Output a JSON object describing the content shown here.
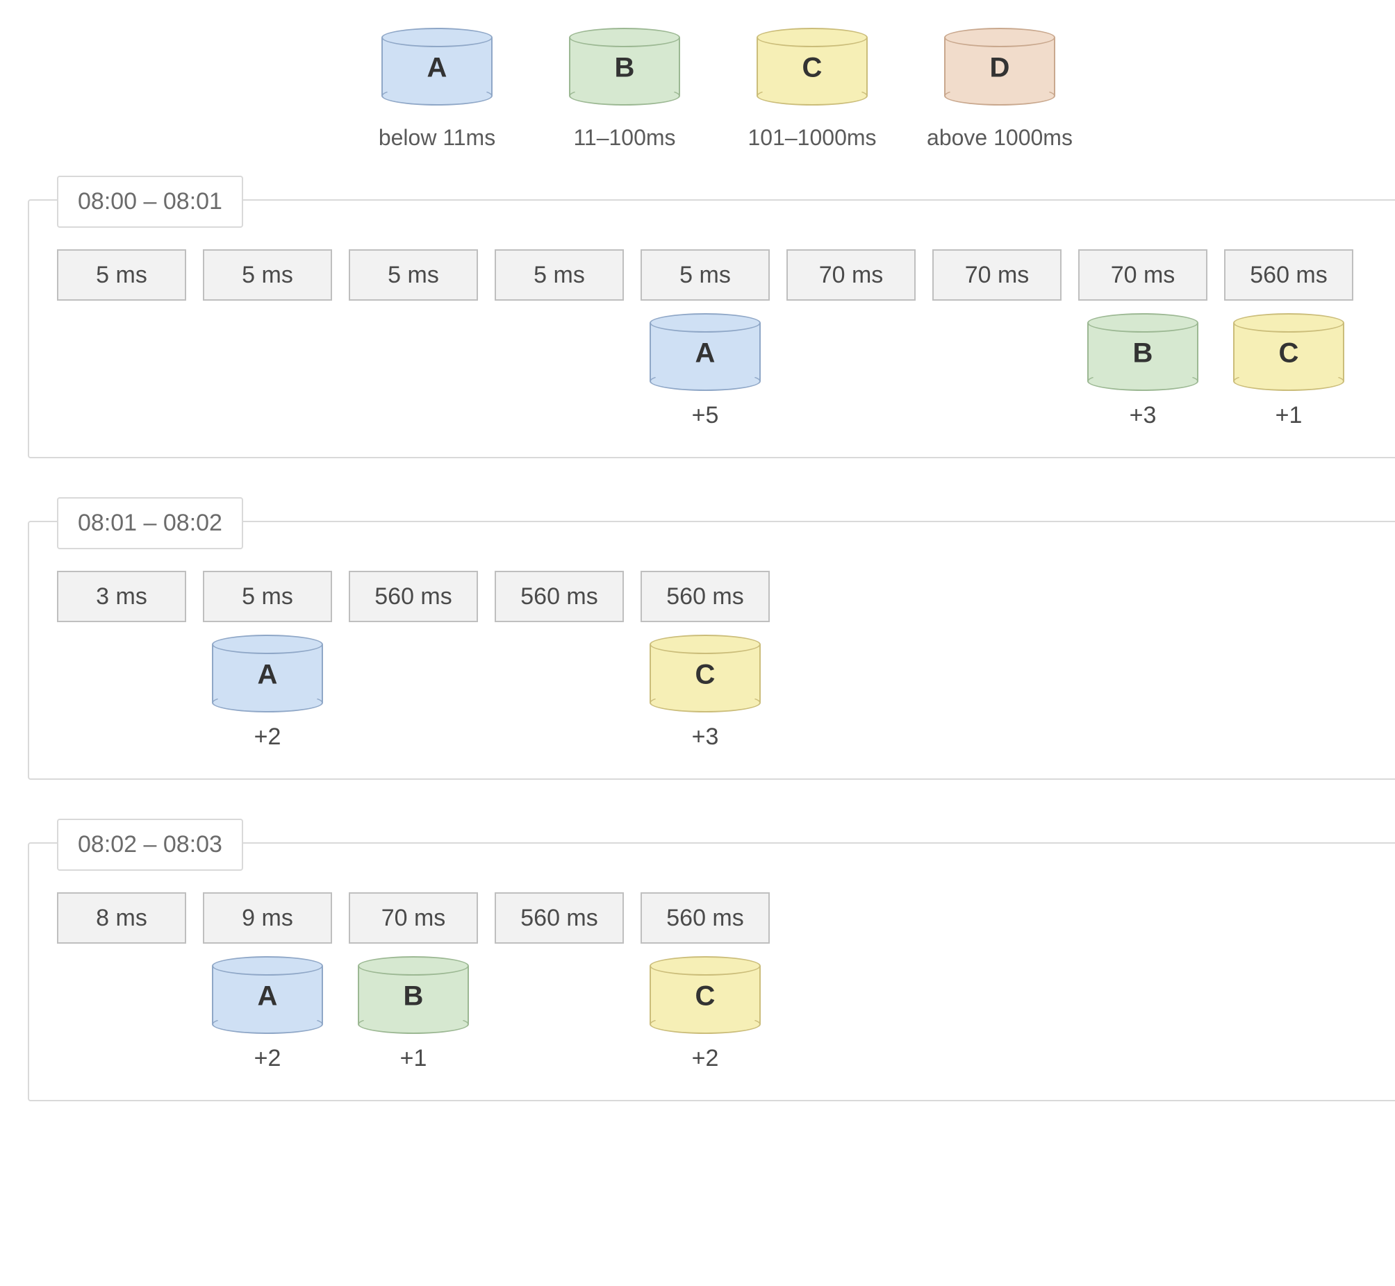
{
  "colors": {
    "chip_bg": "#f2f2f2",
    "chip_border": "#bfbfbf",
    "group_border": "#d9d9d9",
    "text": "#4a4a4a"
  },
  "buckets": {
    "A": {
      "label": "A",
      "caption": "below 11ms",
      "fill": "#cfe0f4",
      "stroke": "#8fa7c7"
    },
    "B": {
      "label": "B",
      "caption": "11–100ms",
      "fill": "#d6e8d0",
      "stroke": "#9cb893"
    },
    "C": {
      "label": "C",
      "caption": "101–1000ms",
      "fill": "#f6efb6",
      "stroke": "#cbbd7a"
    },
    "D": {
      "label": "D",
      "caption": "above 1000ms",
      "fill": "#f1dccb",
      "stroke": "#c9a88e"
    }
  },
  "legend_order": [
    "A",
    "B",
    "C",
    "D"
  ],
  "groups": [
    {
      "title": "08:00 – 08:01",
      "slots": [
        {
          "chip": "5 ms"
        },
        {
          "chip": "5 ms"
        },
        {
          "chip": "5 ms"
        },
        {
          "chip": "5 ms"
        },
        {
          "chip": "5 ms",
          "bucket": "A",
          "count": "+5"
        },
        {
          "chip": "70 ms"
        },
        {
          "chip": "70 ms"
        },
        {
          "chip": "70 ms",
          "bucket": "B",
          "count": "+3"
        },
        {
          "chip": "560 ms",
          "bucket": "C",
          "count": "+1"
        }
      ]
    },
    {
      "title": "08:01 – 08:02",
      "slots": [
        {
          "chip": "3 ms"
        },
        {
          "chip": "5 ms",
          "bucket": "A",
          "count": "+2"
        },
        {
          "chip": "560 ms"
        },
        {
          "chip": "560 ms"
        },
        {
          "chip": "560 ms",
          "bucket": "C",
          "count": "+3"
        }
      ]
    },
    {
      "title": "08:02 – 08:03",
      "slots": [
        {
          "chip": "8 ms"
        },
        {
          "chip": "9 ms",
          "bucket": "A",
          "count": "+2"
        },
        {
          "chip": "70 ms",
          "bucket": "B",
          "count": "+1"
        },
        {
          "chip": "560 ms"
        },
        {
          "chip": "560 ms",
          "bucket": "C",
          "count": "+2"
        }
      ]
    }
  ]
}
